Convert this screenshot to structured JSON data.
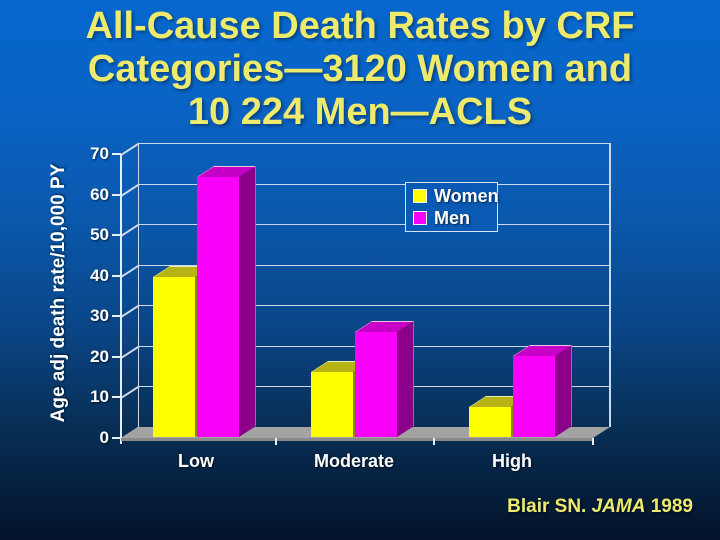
{
  "slide": {
    "title_lines": [
      "All-Cause Death Rates by CRF",
      "Categories—3120 Women and",
      "10 224 Men—ACLS"
    ],
    "citation": {
      "prefix": "Blair SN. ",
      "journal": "JAMA",
      "year": " 1989"
    }
  },
  "chart_data": {
    "type": "bar",
    "style": "3d-column",
    "title": "",
    "categories": [
      "Low",
      "Moderate",
      "High"
    ],
    "series": [
      {
        "name": "Women",
        "values": [
          39.5,
          16,
          7.5
        ]
      },
      {
        "name": "Men",
        "values": [
          64,
          26,
          20
        ]
      }
    ],
    "xlabel": "",
    "ylabel": "Age adj death rate/10,000 PY",
    "ylim": [
      0,
      70
    ],
    "yticks": [
      0,
      10,
      20,
      30,
      40,
      50,
      60,
      70
    ],
    "grid": true,
    "legend": {
      "position": "top-right-inside",
      "entries": [
        "Women",
        "Men"
      ]
    }
  },
  "colors": {
    "background_stops": [
      "#0567ce 0%",
      "#0a63c4 20%",
      "#0a58ad 40%",
      "#0a4688 60%",
      "#083058 78%",
      "#041d3a 92%",
      "#03132b 100%"
    ],
    "title_text": "#eeeb6c",
    "citation_text": "#eeeb6c",
    "axis_text": "#ffffff",
    "frame_line": "#e6eef8",
    "gridline": "#ccd9ea",
    "floor": "#a3a3a3",
    "floor_edge": "#8a8a8a",
    "legend_fill": "#0a5ab5",
    "legend_border": "#d9e3f1",
    "bar_faces": [
      {
        "front": "#ffff00",
        "top": "#b5b414",
        "side": "#8a8a00"
      },
      {
        "front": "#f900f9",
        "top": "#c700c7",
        "side": "#8c0089"
      }
    ]
  }
}
